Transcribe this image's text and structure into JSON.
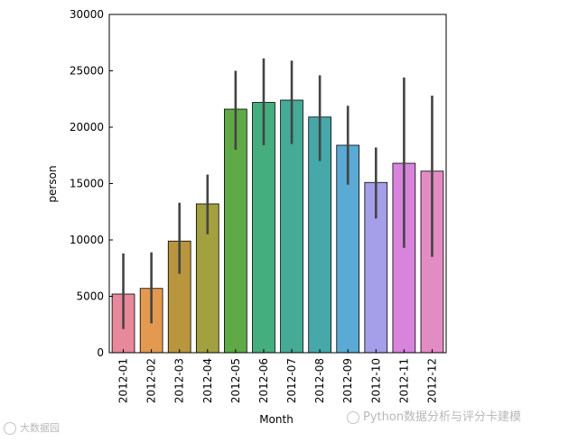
{
  "chart_data": {
    "type": "bar",
    "title": "",
    "xlabel": "Month",
    "ylabel": "person",
    "ylim": [
      0,
      30000
    ],
    "yticks": [
      0,
      5000,
      10000,
      15000,
      20000,
      25000,
      30000
    ],
    "grid": false,
    "categories": [
      "2012-01",
      "2012-02",
      "2012-03",
      "2012-04",
      "2012-05",
      "2012-06",
      "2012-07",
      "2012-08",
      "2012-09",
      "2012-10",
      "2012-11",
      "2012-12"
    ],
    "values": [
      5200,
      5700,
      9900,
      13200,
      21600,
      22200,
      22400,
      20900,
      18400,
      15100,
      16800,
      16100
    ],
    "error_low": [
      2100,
      2600,
      7000,
      10500,
      18000,
      18400,
      18500,
      17000,
      14900,
      11900,
      9300,
      8500
    ],
    "error_high": [
      8800,
      8900,
      13300,
      15800,
      25000,
      26100,
      25900,
      24600,
      21900,
      18200,
      24400,
      22800
    ],
    "colors": [
      "#e7899b",
      "#e39a50",
      "#b9953e",
      "#a3a13f",
      "#5faa47",
      "#44ae7e",
      "#45ab96",
      "#46a8a8",
      "#5aaad5",
      "#a59ee8",
      "#d884dd",
      "#e38cc3"
    ],
    "error_color": "#444444"
  },
  "watermarks": {
    "left": "大数据园",
    "right": "Python数据分析与评分卡建模"
  }
}
